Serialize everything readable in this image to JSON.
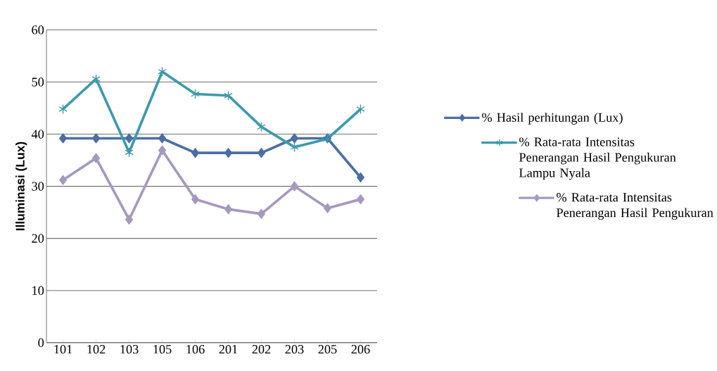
{
  "chart_data": {
    "type": "line",
    "ylabel": "Illuminasi (Lux)",
    "categories": [
      "101",
      "102",
      "103",
      "105",
      "106",
      "201",
      "202",
      "203",
      "205",
      "206"
    ],
    "ylim": [
      0,
      60
    ],
    "yticks": [
      0,
      10,
      20,
      30,
      40,
      50,
      60
    ],
    "grid": "y",
    "legend": "right",
    "line_style": "solid",
    "series": [
      {
        "name": "% Hasil perhitungan (Lux)",
        "color": "#4a6fa5",
        "marker": "diamond",
        "values": [
          39.2,
          39.2,
          39.2,
          39.2,
          36.4,
          36.4,
          36.4,
          39.2,
          39.2,
          31.7
        ]
      },
      {
        "name": "% Rata-rata Intensitas Penerangan Hasil Pengukuran Lampu Nyala",
        "color": "#3c9aae",
        "marker": "cross",
        "values": [
          44.8,
          50.6,
          36.5,
          52.0,
          47.7,
          47.4,
          41.4,
          37.5,
          39.1,
          44.8
        ]
      },
      {
        "name": "% Rata-rata Intensitas Penerangan Hasil Pengukuran",
        "color": "#a699bf",
        "marker": "diamond",
        "values": [
          31.2,
          35.4,
          23.6,
          36.9,
          27.5,
          25.6,
          24.7,
          30.0,
          25.8,
          27.5
        ]
      }
    ]
  }
}
